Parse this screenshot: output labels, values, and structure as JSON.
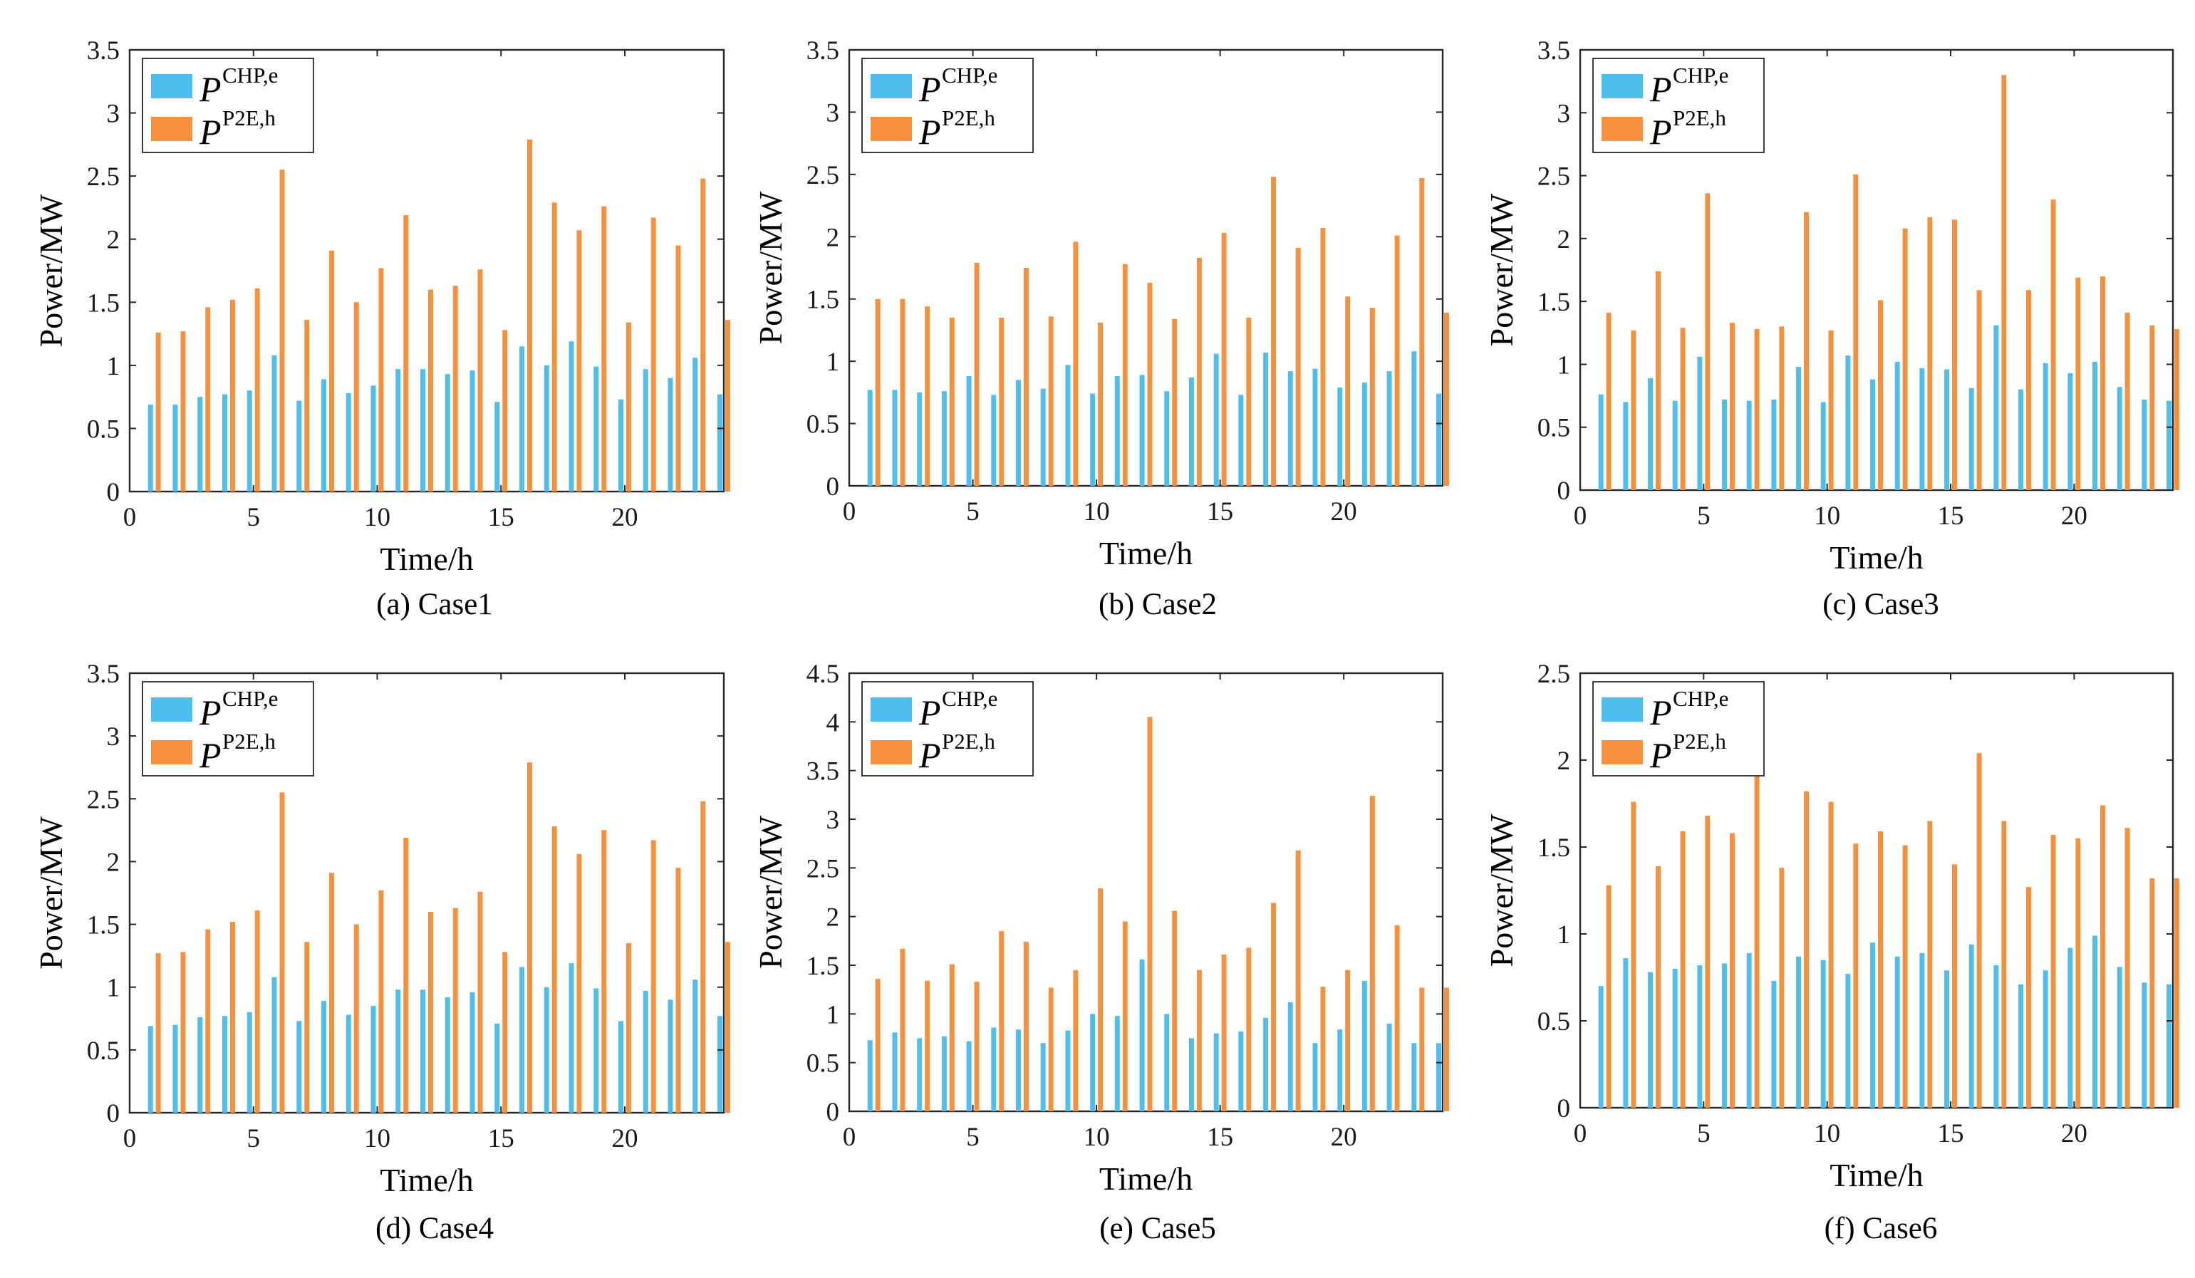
{
  "colors": {
    "chp": "#4dbeee",
    "p2e": "#f7903d",
    "axis": "#262626"
  },
  "legend": {
    "symbol": "P",
    "chp_sup": "CHP,e",
    "p2e_sup": "P2E,h"
  },
  "chart_data": [
    {
      "type": "bar",
      "caption": "(a) Case1",
      "xlabel": "Time/h",
      "ylabel": "Power/MW",
      "xlim": [
        0,
        24
      ],
      "ylim": [
        0,
        3.5
      ],
      "xticks": [
        "0",
        "5",
        "10",
        "15",
        "20"
      ],
      "yticks": [
        "0",
        "0.5",
        "1",
        "1.5",
        "2",
        "2.5",
        "3",
        "3.5"
      ],
      "legend_position": "top-left",
      "categories": [
        1,
        2,
        3,
        4,
        5,
        6,
        7,
        8,
        9,
        10,
        11,
        12,
        13,
        14,
        15,
        16,
        17,
        18,
        19,
        20,
        21,
        22,
        23,
        24
      ],
      "series": [
        {
          "name": "P^{CHP,e}",
          "values": [
            0.69,
            0.69,
            0.75,
            0.77,
            0.8,
            1.08,
            0.72,
            0.89,
            0.78,
            0.84,
            0.97,
            0.97,
            0.93,
            0.96,
            0.71,
            1.15,
            1.0,
            1.19,
            0.99,
            0.73,
            0.97,
            0.9,
            1.06,
            0.77
          ]
        },
        {
          "name": "P^{P2E,h}",
          "values": [
            1.26,
            1.27,
            1.46,
            1.52,
            1.61,
            2.55,
            1.36,
            1.91,
            1.5,
            1.77,
            2.19,
            1.6,
            1.63,
            1.76,
            1.28,
            2.79,
            2.29,
            2.07,
            2.26,
            1.34,
            2.17,
            1.95,
            2.48,
            1.36
          ]
        }
      ]
    },
    {
      "type": "bar",
      "caption": "(b) Case2",
      "xlabel": "Time/h",
      "ylabel": "Power/MW",
      "xlim": [
        0,
        24
      ],
      "ylim": [
        0,
        3.5
      ],
      "xticks": [
        "0",
        "5",
        "10",
        "15",
        "20"
      ],
      "yticks": [
        "0",
        "0.5",
        "1",
        "1.5",
        "2",
        "2.5",
        "3",
        "3.5"
      ],
      "legend_position": "top-left",
      "categories": [
        1,
        2,
        3,
        4,
        5,
        6,
        7,
        8,
        9,
        10,
        11,
        12,
        13,
        14,
        15,
        16,
        17,
        18,
        19,
        20,
        21,
        22,
        23,
        24
      ],
      "series": [
        {
          "name": "P^{CHP,e}",
          "values": [
            0.77,
            0.77,
            0.75,
            0.76,
            0.88,
            0.73,
            0.85,
            0.78,
            0.97,
            0.74,
            0.88,
            0.89,
            0.76,
            0.87,
            1.06,
            0.73,
            1.07,
            0.92,
            0.94,
            0.79,
            0.83,
            0.92,
            1.08,
            0.74
          ]
        },
        {
          "name": "P^{P2E,h}",
          "values": [
            1.5,
            1.5,
            1.44,
            1.35,
            1.79,
            1.35,
            1.75,
            1.36,
            1.96,
            1.31,
            1.78,
            1.63,
            1.34,
            1.83,
            2.03,
            1.35,
            2.48,
            1.91,
            2.07,
            1.52,
            1.43,
            2.01,
            2.47,
            1.39
          ]
        }
      ]
    },
    {
      "type": "bar",
      "caption": "(c) Case3",
      "xlabel": "Time/h",
      "ylabel": "Power/MW",
      "xlim": [
        0,
        24
      ],
      "ylim": [
        0,
        3.5
      ],
      "xticks": [
        "0",
        "5",
        "10",
        "15",
        "20"
      ],
      "yticks": [
        "0",
        "0.5",
        "1",
        "1.5",
        "2",
        "2.5",
        "3",
        "3.5"
      ],
      "legend_position": "top-left",
      "categories": [
        1,
        2,
        3,
        4,
        5,
        6,
        7,
        8,
        9,
        10,
        11,
        12,
        13,
        14,
        15,
        16,
        17,
        18,
        19,
        20,
        21,
        22,
        23,
        24
      ],
      "series": [
        {
          "name": "P^{CHP,e}",
          "values": [
            0.76,
            0.7,
            0.89,
            0.71,
            1.06,
            0.72,
            0.71,
            0.72,
            0.98,
            0.7,
            1.07,
            0.88,
            1.02,
            0.97,
            0.96,
            0.81,
            1.31,
            0.8,
            1.01,
            0.93,
            1.02,
            0.82,
            0.72,
            0.71
          ]
        },
        {
          "name": "P^{P2E,h}",
          "values": [
            1.41,
            1.27,
            1.74,
            1.29,
            2.36,
            1.33,
            1.28,
            1.3,
            2.21,
            1.27,
            2.51,
            1.51,
            2.08,
            2.17,
            2.15,
            1.59,
            3.3,
            1.59,
            2.31,
            1.69,
            1.7,
            1.41,
            1.31,
            1.28
          ]
        }
      ]
    },
    {
      "type": "bar",
      "caption": "(d) Case4",
      "xlabel": "Time/h",
      "ylabel": "Power/MW",
      "xlim": [
        0,
        24
      ],
      "ylim": [
        0,
        3.5
      ],
      "xticks": [
        "0",
        "5",
        "10",
        "15",
        "20"
      ],
      "yticks": [
        "0",
        "0.5",
        "1",
        "1.5",
        "2",
        "2.5",
        "3",
        "3.5"
      ],
      "legend_position": "top-left",
      "categories": [
        1,
        2,
        3,
        4,
        5,
        6,
        7,
        8,
        9,
        10,
        11,
        12,
        13,
        14,
        15,
        16,
        17,
        18,
        19,
        20,
        21,
        22,
        23,
        24
      ],
      "series": [
        {
          "name": "P^{CHP,e}",
          "values": [
            0.69,
            0.7,
            0.76,
            0.77,
            0.8,
            1.08,
            0.73,
            0.89,
            0.78,
            0.85,
            0.98,
            0.98,
            0.92,
            0.96,
            0.71,
            1.16,
            1.0,
            1.19,
            0.99,
            0.73,
            0.97,
            0.9,
            1.06,
            0.77
          ]
        },
        {
          "name": "P^{P2E,h}",
          "values": [
            1.27,
            1.28,
            1.46,
            1.52,
            1.61,
            2.55,
            1.36,
            1.91,
            1.5,
            1.77,
            2.19,
            1.6,
            1.63,
            1.76,
            1.28,
            2.79,
            2.28,
            2.06,
            2.25,
            1.35,
            2.17,
            1.95,
            2.48,
            1.36
          ]
        }
      ]
    },
    {
      "type": "bar",
      "caption": "(e) Case5",
      "xlabel": "Time/h",
      "ylabel": "Power/MW",
      "xlim": [
        0,
        24
      ],
      "ylim": [
        0,
        4.5
      ],
      "xticks": [
        "0",
        "5",
        "10",
        "15",
        "20"
      ],
      "yticks": [
        "0",
        "0.5",
        "1",
        "1.5",
        "2",
        "2.5",
        "3",
        "3.5",
        "4",
        "4.5"
      ],
      "legend_position": "top-left",
      "categories": [
        1,
        2,
        3,
        4,
        5,
        6,
        7,
        8,
        9,
        10,
        11,
        12,
        13,
        14,
        15,
        16,
        17,
        18,
        19,
        20,
        21,
        22,
        23,
        24
      ],
      "series": [
        {
          "name": "P^{CHP,e}",
          "values": [
            0.73,
            0.81,
            0.75,
            0.77,
            0.72,
            0.86,
            0.84,
            0.7,
            0.83,
            1.0,
            0.98,
            1.56,
            1.0,
            0.75,
            0.8,
            0.82,
            0.96,
            1.12,
            0.7,
            0.84,
            1.34,
            0.9,
            0.7,
            0.7
          ]
        },
        {
          "name": "P^{P2E,h}",
          "values": [
            1.36,
            1.67,
            1.34,
            1.51,
            1.33,
            1.85,
            1.74,
            1.27,
            1.45,
            2.29,
            1.95,
            4.05,
            2.06,
            1.45,
            1.61,
            1.68,
            2.14,
            2.68,
            1.28,
            1.45,
            3.24,
            1.91,
            1.27,
            1.27
          ]
        }
      ]
    },
    {
      "type": "bar",
      "caption": "(f) Case6",
      "xlabel": "Time/h",
      "ylabel": "Power/MW",
      "xlim": [
        0,
        24
      ],
      "ylim": [
        0,
        2.5
      ],
      "xticks": [
        "0",
        "5",
        "10",
        "15",
        "20"
      ],
      "yticks": [
        "0",
        "0.5",
        "1",
        "1.5",
        "2",
        "2.5"
      ],
      "legend_position": "top-left",
      "categories": [
        1,
        2,
        3,
        4,
        5,
        6,
        7,
        8,
        9,
        10,
        11,
        12,
        13,
        14,
        15,
        16,
        17,
        18,
        19,
        20,
        21,
        22,
        23,
        24
      ],
      "series": [
        {
          "name": "P^{CHP,e}",
          "values": [
            0.7,
            0.86,
            0.78,
            0.8,
            0.82,
            0.83,
            0.89,
            0.73,
            0.87,
            0.85,
            0.77,
            0.95,
            0.87,
            0.89,
            0.79,
            0.94,
            0.82,
            0.71,
            0.79,
            0.92,
            0.99,
            0.81,
            0.72,
            0.71
          ]
        },
        {
          "name": "P^{P2E,h}",
          "values": [
            1.28,
            1.76,
            1.39,
            1.59,
            1.68,
            1.58,
            1.93,
            1.38,
            1.82,
            1.76,
            1.52,
            1.59,
            1.51,
            1.65,
            1.4,
            2.04,
            1.65,
            1.27,
            1.57,
            1.55,
            1.74,
            1.61,
            1.32,
            1.32
          ]
        }
      ]
    }
  ]
}
